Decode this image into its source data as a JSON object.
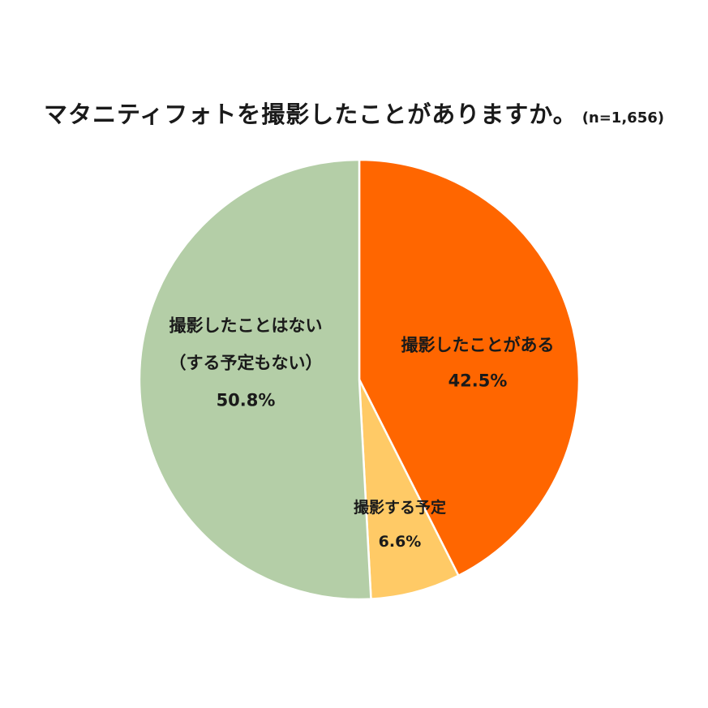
{
  "chart_data": {
    "type": "pie",
    "title": "マタニティフォトを撮影したことがありますか。",
    "subtitle": "(n=1,656)",
    "legend": "none",
    "slices": [
      {
        "label_lines": [
          "撮影したことがある"
        ],
        "value": 42.5,
        "value_label": "42.5%",
        "color": "#ff6600"
      },
      {
        "label_lines": [
          "撮影する予定"
        ],
        "value": 6.6,
        "value_label": "6.6%",
        "color": "#ffca66"
      },
      {
        "label_lines": [
          "撮影したことはない",
          "（する予定もない）"
        ],
        "value": 50.8,
        "value_label": "50.8%",
        "color": "#b4cea7"
      }
    ]
  }
}
